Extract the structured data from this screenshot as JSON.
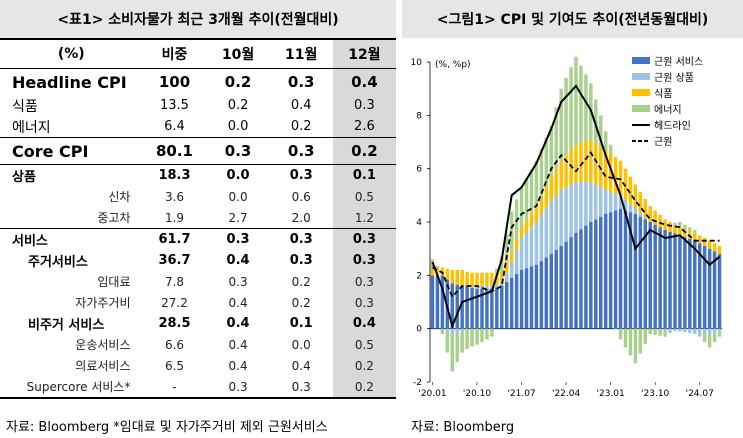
{
  "left": {
    "title": "<표1> 소비자물가 최근 3개월 추이(전월대비)",
    "columns": [
      "(%)",
      "비중",
      "10월",
      "11월",
      "12월"
    ],
    "rows": [
      {
        "label": "Headline CPI",
        "w": "100",
        "m10": "0.2",
        "m11": "0.3",
        "m12": "0.4"
      },
      {
        "label": "식품",
        "w": "13.5",
        "m10": "0.2",
        "m11": "0.4",
        "m12": "0.3"
      },
      {
        "label": "에너지",
        "w": "6.4",
        "m10": "0.0",
        "m11": "0.2",
        "m12": "2.6"
      },
      {
        "label": "Core CPI",
        "w": "80.1",
        "m10": "0.3",
        "m11": "0.3",
        "m12": "0.2"
      },
      {
        "label": "상품",
        "w": "18.3",
        "m10": "0.0",
        "m11": "0.3",
        "m12": "0.1"
      },
      {
        "label": "신차",
        "w": "3.6",
        "m10": "0.0",
        "m11": "0.6",
        "m12": "0.5"
      },
      {
        "label": "중고차",
        "w": "1.9",
        "m10": "2.7",
        "m11": "2.0",
        "m12": "1.2"
      },
      {
        "label": "서비스",
        "w": "61.7",
        "m10": "0.3",
        "m11": "0.3",
        "m12": "0.3"
      },
      {
        "label": "주거서비스",
        "w": "36.7",
        "m10": "0.4",
        "m11": "0.3",
        "m12": "0.3"
      },
      {
        "label": "임대료",
        "w": "7.8",
        "m10": "0.3",
        "m11": "0.2",
        "m12": "0.3"
      },
      {
        "label": "자가주거비",
        "w": "27.2",
        "m10": "0.4",
        "m11": "0.2",
        "m12": "0.3"
      },
      {
        "label": "비주거 서비스",
        "w": "28.5",
        "m10": "0.4",
        "m11": "0.1",
        "m12": "0.4"
      },
      {
        "label": "운송서비스",
        "w": "6.6",
        "m10": "0.4",
        "m11": "0.0",
        "m12": "0.5"
      },
      {
        "label": "의료서비스",
        "w": "6.5",
        "m10": "0.4",
        "m11": "0.4",
        "m12": "0.2"
      },
      {
        "label": "Supercore 서비스*",
        "w": "-",
        "m10": "0.3",
        "m11": "0.3",
        "m12": "0.2"
      }
    ],
    "source": "자료: Bloomberg *임대료 및 자가주거비 제외 근원서비스"
  },
  "right": {
    "title": "<그림1> CPI 및 기여도 추이(전년동월대비)",
    "source": "자료: Bloomberg"
  },
  "chart_data": {
    "type": "bar",
    "unit_label": "(%, %p)",
    "ylim": [
      -2,
      10
    ],
    "yticks": [
      -2,
      0,
      2,
      4,
      6,
      8,
      10
    ],
    "xtick_labels": [
      "'20.01",
      "'20.10",
      "'21.07",
      "'22.04",
      "'23.01",
      "'23.10",
      "'24.07"
    ],
    "legend_position": "top-right",
    "colors": {
      "core_services": "#4472c4",
      "core_goods": "#9dc3e6",
      "food": "#ffc000",
      "energy": "#a9d18e",
      "headline": "#000000",
      "core": "#000000"
    },
    "series": [
      {
        "name": "근원 서비스",
        "kind": "stacked-bar"
      },
      {
        "name": "근원 상품",
        "kind": "stacked-bar"
      },
      {
        "name": "식품",
        "kind": "stacked-bar"
      },
      {
        "name": "에너지",
        "kind": "stacked-bar"
      },
      {
        "name": "헤드라인",
        "kind": "line-solid"
      },
      {
        "name": "근원",
        "kind": "line-dashed"
      }
    ],
    "anchors": {
      "months": [
        "2020-01",
        "2020-03",
        "2020-05",
        "2020-07",
        "2020-10",
        "2021-01",
        "2021-03",
        "2021-05",
        "2021-07",
        "2021-10",
        "2022-01",
        "2022-03",
        "2022-06",
        "2022-09",
        "2022-12",
        "2023-03",
        "2023-06",
        "2023-09",
        "2023-12",
        "2024-03",
        "2024-06",
        "2024-09",
        "2024-11"
      ],
      "core_services": [
        2.0,
        2.0,
        1.7,
        1.6,
        1.5,
        1.5,
        1.6,
        1.9,
        2.2,
        2.4,
        2.8,
        3.1,
        3.6,
        4.0,
        4.3,
        4.5,
        4.3,
        4.0,
        3.7,
        3.5,
        3.3,
        3.0,
        2.8
      ],
      "core_goods": [
        0.0,
        0.0,
        -0.2,
        -0.1,
        0.1,
        0.1,
        0.1,
        0.6,
        1.2,
        1.6,
        2.0,
        2.1,
        1.9,
        1.5,
        0.9,
        0.5,
        0.2,
        0.0,
        -0.1,
        -0.1,
        -0.2,
        -0.2,
        -0.1
      ],
      "food": [
        0.3,
        0.3,
        0.5,
        0.6,
        0.5,
        0.5,
        0.5,
        0.4,
        0.4,
        0.6,
        0.9,
        1.1,
        1.4,
        1.6,
        1.5,
        1.3,
        0.9,
        0.6,
        0.4,
        0.3,
        0.3,
        0.3,
        0.3
      ],
      "energy": [
        0.3,
        -0.2,
        -1.4,
        -0.8,
        -0.6,
        -0.3,
        0.5,
        1.5,
        1.5,
        1.7,
        1.9,
        2.7,
        3.3,
        2.1,
        0.7,
        -0.4,
        -1.3,
        -0.2,
        -0.2,
        0.2,
        0.1,
        -0.5,
        -0.2
      ],
      "headline": [
        2.5,
        1.5,
        0.1,
        1.0,
        1.2,
        1.4,
        2.6,
        5.0,
        5.3,
        6.2,
        7.5,
        8.5,
        9.1,
        8.2,
        6.5,
        5.0,
        3.0,
        3.7,
        3.4,
        3.5,
        3.0,
        2.4,
        2.7
      ],
      "core": [
        2.3,
        2.1,
        1.2,
        1.6,
        1.6,
        1.4,
        1.6,
        3.8,
        4.3,
        4.6,
        6.0,
        6.5,
        5.9,
        6.6,
        5.7,
        5.6,
        4.8,
        4.1,
        3.9,
        3.8,
        3.3,
        3.3,
        3.3
      ]
    }
  }
}
